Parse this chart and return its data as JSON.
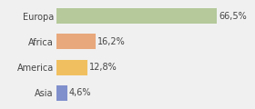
{
  "categories": [
    "Europa",
    "Africa",
    "America",
    "Asia"
  ],
  "values": [
    66.5,
    16.2,
    12.8,
    4.6
  ],
  "labels": [
    "66,5%",
    "16,2%",
    "12,8%",
    "4,6%"
  ],
  "colors": [
    "#b5c99a",
    "#e8a87c",
    "#f0c060",
    "#8090cc"
  ],
  "background_color": "#f0f0f0",
  "xlim": [
    0,
    80
  ],
  "label_fontsize": 7,
  "bar_height": 0.6,
  "figsize": [
    2.8,
    1.2
  ],
  "dpi": 100
}
